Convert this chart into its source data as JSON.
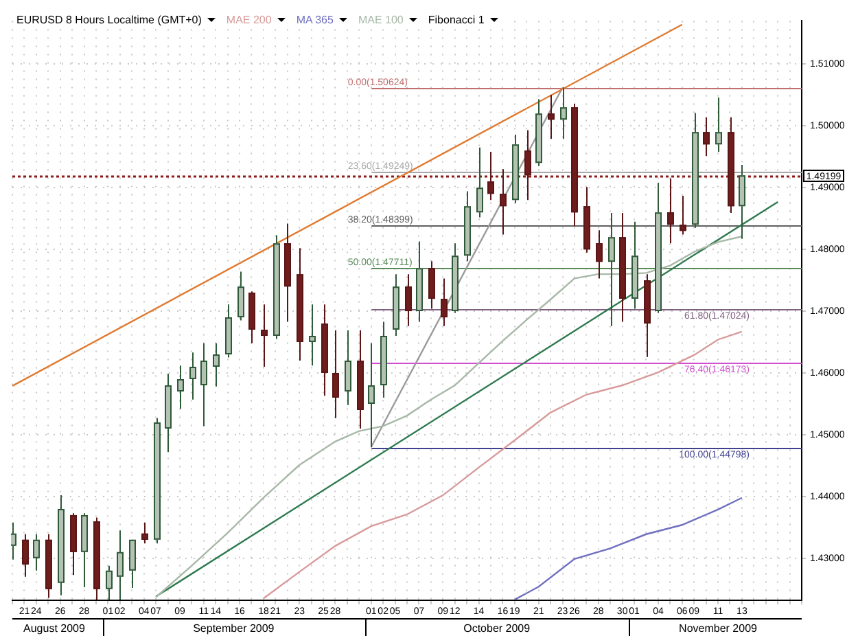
{
  "chart_data": {
    "type": "candlestick",
    "title": "EURUSD 8 Hours Localtime (GMT+0)",
    "categories": [
      null,
      "21",
      "24",
      null,
      "26",
      null,
      "28",
      null,
      "01",
      "02",
      null,
      "04",
      "07",
      null,
      "09",
      null,
      "11",
      "14",
      null,
      "16",
      null,
      "18",
      "21",
      null,
      "23",
      null,
      "25",
      "28",
      null,
      null,
      "01",
      "02",
      "05",
      null,
      "07",
      null,
      "09",
      "12",
      null,
      "14",
      null,
      "16",
      "19",
      null,
      "21",
      null,
      "23",
      "26",
      null,
      "28",
      null,
      "30",
      "01",
      null,
      "04",
      null,
      "06",
      "09",
      null,
      "11",
      null,
      "13",
      null,
      null,
      null,
      null,
      null
    ],
    "ohlc": [
      [
        1.432,
        1.4358,
        1.4298,
        1.434
      ],
      [
        1.433,
        1.4339,
        1.427,
        1.429
      ],
      [
        1.43,
        1.4339,
        1.428,
        1.433
      ],
      [
        1.433,
        1.4339,
        1.4236,
        1.425
      ],
      [
        1.426,
        1.4402,
        1.424,
        1.438
      ],
      [
        1.437,
        1.4373,
        1.4273,
        1.431
      ],
      [
        1.431,
        1.4373,
        1.4253,
        1.437
      ],
      [
        1.436,
        1.4366,
        1.4233,
        1.425
      ],
      [
        1.425,
        1.4288,
        1.4233,
        1.428
      ],
      [
        1.427,
        1.4345,
        1.4233,
        1.431
      ],
      [
        1.428,
        1.433,
        1.4252,
        1.433
      ],
      [
        1.434,
        1.4358,
        1.4324,
        1.433
      ],
      [
        1.433,
        1.4527,
        1.4324,
        1.452
      ],
      [
        1.451,
        1.4599,
        1.4472,
        1.458
      ],
      [
        1.457,
        1.4612,
        1.4542,
        1.459
      ],
      [
        1.459,
        1.4633,
        1.4557,
        1.461
      ],
      [
        1.458,
        1.4648,
        1.4514,
        1.462
      ],
      [
        1.461,
        1.4648,
        1.4578,
        1.463
      ],
      [
        1.463,
        1.4711,
        1.4625,
        1.469
      ],
      [
        1.469,
        1.4764,
        1.4685,
        1.474
      ],
      [
        1.473,
        1.4732,
        1.4648,
        1.467
      ],
      [
        1.467,
        1.4711,
        1.461,
        1.466
      ],
      [
        1.466,
        1.4823,
        1.4655,
        1.481
      ],
      [
        1.481,
        1.4842,
        1.4683,
        1.474
      ],
      [
        1.476,
        1.4802,
        1.462,
        1.465
      ],
      [
        1.465,
        1.4711,
        1.4612,
        1.466
      ],
      [
        1.468,
        1.4711,
        1.4563,
        1.46
      ],
      [
        1.46,
        1.4669,
        1.4527,
        1.456
      ],
      [
        1.457,
        1.4669,
        1.4548,
        1.462
      ],
      [
        1.462,
        1.4669,
        1.451,
        1.454
      ],
      [
        1.455,
        1.4648,
        1.44798,
        1.458
      ],
      [
        1.458,
        1.4683,
        1.456,
        1.466
      ],
      [
        1.467,
        1.476,
        1.466,
        1.474
      ],
      [
        1.474,
        1.476,
        1.4676,
        1.47
      ],
      [
        1.47,
        1.4813,
        1.4683,
        1.477
      ],
      [
        1.477,
        1.4781,
        1.4704,
        1.472
      ],
      [
        1.472,
        1.4753,
        1.4676,
        1.469
      ],
      [
        1.47,
        1.481,
        1.4697,
        1.479
      ],
      [
        1.479,
        1.4894,
        1.4781,
        1.487
      ],
      [
        1.486,
        1.4965,
        1.4852,
        1.49
      ],
      [
        1.491,
        1.4958,
        1.488,
        1.489
      ],
      [
        1.489,
        1.493,
        1.4824,
        1.487
      ],
      [
        1.488,
        1.4986,
        1.4875,
        1.497
      ],
      [
        1.496,
        1.4993,
        1.488,
        1.492
      ],
      [
        1.494,
        1.5043,
        1.4935,
        1.502
      ],
      [
        1.502,
        1.505,
        1.4979,
        1.501
      ],
      [
        1.501,
        1.50624,
        1.4979,
        1.503
      ],
      [
        1.503,
        1.5036,
        1.4838,
        1.486
      ],
      [
        1.487,
        1.4901,
        1.4795,
        1.48
      ],
      [
        1.481,
        1.4831,
        1.4753,
        1.478
      ],
      [
        1.478,
        1.4859,
        1.4676,
        1.482
      ],
      [
        1.482,
        1.4859,
        1.4683,
        1.472
      ],
      [
        1.472,
        1.4845,
        1.4704,
        1.479
      ],
      [
        1.475,
        1.476,
        1.4626,
        1.468
      ],
      [
        1.47,
        1.4908,
        1.4697,
        1.486
      ],
      [
        1.486,
        1.4915,
        1.481,
        1.484
      ],
      [
        1.484,
        1.4887,
        1.4824,
        1.483
      ],
      [
        1.484,
        1.5021,
        1.4835,
        1.499
      ],
      [
        1.499,
        1.5014,
        1.4951,
        1.497
      ],
      [
        1.497,
        1.5046,
        1.4958,
        1.499
      ],
      [
        1.499,
        1.5014,
        1.4859,
        1.487
      ],
      [
        1.487,
        1.4937,
        1.4817,
        1.492
      ],
      null,
      null,
      null,
      null,
      null
    ],
    "series": [
      {
        "name": "MAE 200",
        "type": "line",
        "color": "#d89a9a",
        "values": [
          null,
          null,
          null,
          null,
          null,
          null,
          null,
          null,
          null,
          null,
          null,
          null,
          null,
          null,
          null,
          null,
          null,
          null,
          null,
          null,
          null,
          1.4235,
          null,
          null,
          1.4278,
          null,
          null,
          1.432,
          null,
          null,
          1.4352,
          null,
          null,
          1.4371,
          null,
          null,
          1.4402,
          null,
          null,
          1.4447,
          null,
          null,
          1.4491,
          null,
          null,
          1.4536,
          null,
          null,
          1.4565,
          null,
          null,
          1.458,
          null,
          null,
          1.4601,
          null,
          null,
          1.4629,
          null,
          1.4654,
          null,
          1.4667,
          null,
          null,
          null,
          null,
          null
        ]
      },
      {
        "name": "MA 365",
        "type": "line",
        "color": "#7070c0",
        "values": [
          null,
          null,
          null,
          null,
          null,
          null,
          null,
          null,
          null,
          null,
          null,
          null,
          null,
          null,
          null,
          null,
          null,
          null,
          null,
          null,
          null,
          null,
          null,
          null,
          null,
          null,
          null,
          null,
          null,
          null,
          null,
          null,
          null,
          null,
          null,
          null,
          null,
          null,
          null,
          null,
          null,
          null,
          1.4233,
          null,
          1.4254,
          null,
          null,
          1.4299,
          null,
          null,
          1.4316,
          null,
          null,
          1.4339,
          null,
          null,
          1.4354,
          null,
          null,
          1.4379,
          null,
          1.4398,
          null,
          null,
          null,
          null,
          null
        ]
      },
      {
        "name": "MAE 100",
        "type": "line",
        "color": "#a8b8a8",
        "values": [
          null,
          null,
          null,
          null,
          null,
          null,
          null,
          null,
          null,
          null,
          null,
          null,
          1.4237,
          null,
          null,
          1.4288,
          null,
          null,
          1.4341,
          null,
          null,
          1.4398,
          null,
          null,
          1.4451,
          null,
          null,
          1.4489,
          null,
          1.4506,
          null,
          1.4514,
          null,
          1.4531,
          null,
          1.4557,
          null,
          1.458,
          null,
          1.4616,
          null,
          1.4652,
          null,
          1.4686,
          null,
          1.4719,
          null,
          1.4753,
          null,
          1.476,
          null,
          1.476,
          null,
          1.4762,
          null,
          1.4774,
          null,
          1.4796,
          null,
          1.4812,
          null,
          1.4821,
          null,
          null,
          null,
          null,
          null
        ]
      },
      {
        "type": "line",
        "color": "#e07a30",
        "values": [
          1.4579,
          null,
          null,
          null,
          null,
          null,
          null,
          null,
          null,
          null,
          null,
          null,
          null,
          null,
          null,
          null,
          null,
          null,
          null,
          null,
          null,
          null,
          null,
          null,
          null,
          null,
          null,
          null,
          null,
          null,
          null,
          null,
          null,
          null,
          null,
          null,
          null,
          null,
          null,
          null,
          null,
          null,
          null,
          null,
          null,
          null,
          null,
          null,
          null,
          null,
          null,
          null,
          null,
          null,
          null,
          null,
          1.5164,
          null,
          null,
          null,
          null,
          null,
          null,
          null,
          null,
          null,
          null
        ]
      },
      {
        "type": "line",
        "color": "#2e7a4e",
        "values": [
          null,
          null,
          null,
          null,
          null,
          null,
          null,
          null,
          null,
          null,
          null,
          null,
          1.4238,
          null,
          null,
          null,
          null,
          null,
          null,
          null,
          null,
          null,
          null,
          null,
          null,
          null,
          null,
          null,
          null,
          null,
          null,
          null,
          null,
          null,
          null,
          null,
          null,
          null,
          null,
          null,
          null,
          null,
          null,
          null,
          null,
          null,
          null,
          null,
          null,
          null,
          null,
          null,
          null,
          null,
          null,
          null,
          null,
          null,
          null,
          null,
          null,
          null,
          null,
          null,
          1.4877,
          null,
          null
        ]
      },
      {
        "type": "line",
        "color": "#9a9a9a",
        "values": [
          null,
          null,
          null,
          null,
          null,
          null,
          null,
          null,
          null,
          null,
          null,
          null,
          null,
          null,
          null,
          null,
          null,
          null,
          null,
          null,
          null,
          null,
          null,
          null,
          null,
          null,
          null,
          null,
          null,
          null,
          1.448,
          null,
          null,
          null,
          null,
          null,
          null,
          null,
          null,
          null,
          null,
          null,
          null,
          null,
          null,
          null,
          1.5062,
          null,
          null,
          null,
          null,
          null,
          null,
          null,
          null,
          null,
          null,
          null,
          null,
          null,
          null,
          null,
          null,
          null,
          null,
          null,
          null
        ]
      }
    ],
    "ylim": [
      1.4232,
      1.517
    ],
    "yticks": [
      {
        "value": 1.43,
        "label": "1.43000"
      },
      {
        "value": 1.44,
        "label": "1.44000"
      },
      {
        "value": 1.45,
        "label": "1.45000"
      },
      {
        "value": 1.46,
        "label": "1.46000"
      },
      {
        "value": 1.47,
        "label": "1.47000"
      },
      {
        "value": 1.48,
        "label": "1.48000"
      },
      {
        "value": 1.49,
        "label": "1.49000"
      },
      {
        "value": 1.5,
        "label": "1.50000"
      },
      {
        "value": 1.51,
        "label": "1.51000"
      }
    ],
    "grid": true,
    "legend": "top",
    "ref_lines": [
      {
        "axis": "y",
        "value": 1.50624,
        "label": "0.00(1.50624)",
        "color": "#c07070"
      },
      {
        "axis": "y",
        "value": 1.49249,
        "label": "23.60(1.49249)",
        "color": "#a8a8a8"
      },
      {
        "axis": "y",
        "value": 1.48399,
        "label": "38.20(1.48399)",
        "color": "#606060"
      },
      {
        "axis": "y",
        "value": 1.47711,
        "label": "50.00(1.47711)",
        "color": "#5a8a5a"
      },
      {
        "axis": "y",
        "value": 1.47024,
        "label": "61.80(1.47024)",
        "color": "#806080"
      },
      {
        "axis": "y",
        "value": 1.46173,
        "label": "76.40(1.46173)",
        "color": "#d050d0"
      },
      {
        "axis": "y",
        "value": 1.44798,
        "label": "100.00(1.44798)",
        "color": "#404090"
      },
      {
        "axis": "y",
        "value": 1.49199,
        "label": "1.49199",
        "color": "#901818",
        "line_style": "dotted"
      }
    ],
    "annotations": [
      "Fibonacci 1",
      "August 2009",
      "September 2009",
      "October 2009",
      "November 2009"
    ]
  }
}
